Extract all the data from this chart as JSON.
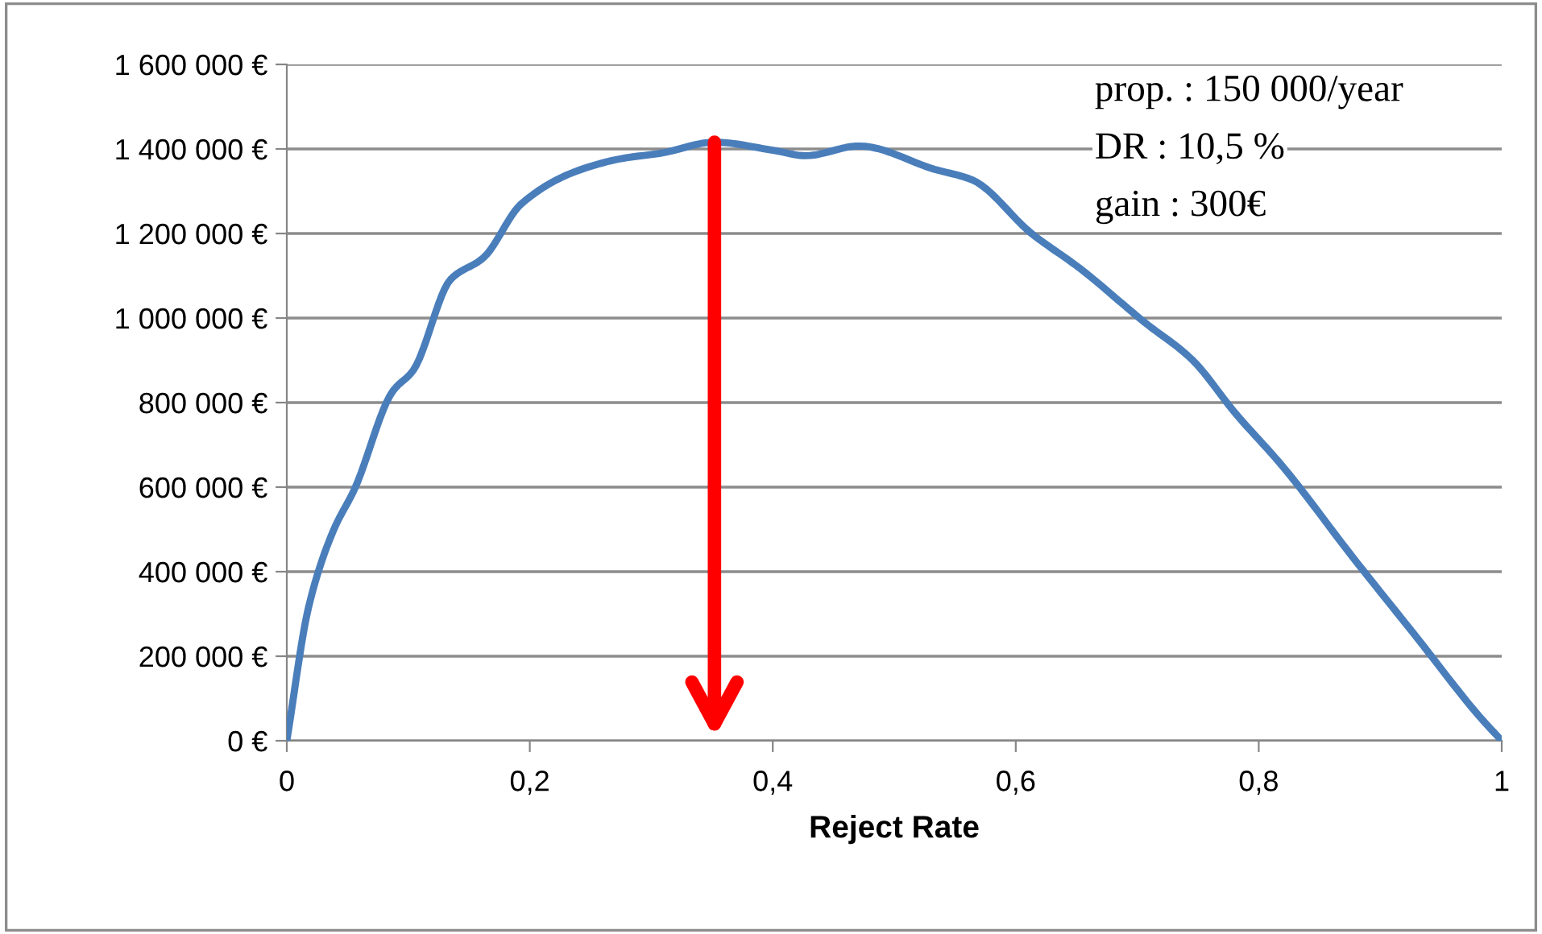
{
  "chart_data": {
    "type": "line",
    "xlabel": "Reject Rate",
    "annotations": [
      "prop. : 150 000/year",
      "DR : 10,5 %",
      "gain : 300€"
    ],
    "series": [
      {
        "color": "#4a7ebb",
        "x": [
          0,
          0.018,
          0.038,
          0.056,
          0.087,
          0.104,
          0.135,
          0.162,
          0.193,
          0.237,
          0.277,
          0.308,
          0.352,
          0.4,
          0.427,
          0.471,
          0.533,
          0.564,
          0.613,
          0.653,
          0.706,
          0.745,
          0.781,
          0.82,
          0.878,
          0.931,
          0.98,
          1.0
        ],
        "values": [
          0,
          317000,
          495000,
          597000,
          826000,
          876000,
          1092000,
          1143000,
          1270000,
          1346000,
          1378000,
          1390000,
          1416000,
          1397000,
          1384000,
          1407000,
          1352000,
          1327000,
          1200000,
          1117000,
          990000,
          902000,
          774000,
          648000,
          432000,
          241000,
          63000,
          0
        ]
      },
      {
        "type": "line",
        "color": "#ff0000",
        "x": [
          0.352,
          0.352
        ],
        "values": [
          1416000,
          40000
        ]
      }
    ],
    "xlim": [
      0,
      1
    ],
    "xticks": [
      0,
      {
        "value": 0.2,
        "label": "0,2"
      },
      {
        "value": 0.4,
        "label": "0,4"
      },
      {
        "value": 0.6,
        "label": "0,6"
      },
      {
        "value": 0.8,
        "label": "0,8"
      },
      1
    ],
    "ylim": [
      0,
      1600000
    ],
    "yticks": [
      {
        "value": 0,
        "label": "0 €"
      },
      {
        "value": 200000,
        "label": "200 000 €"
      },
      {
        "value": 400000,
        "label": "400 000 €"
      },
      {
        "value": 600000,
        "label": "600 000 €"
      },
      {
        "value": 800000,
        "label": "800 000 €"
      },
      {
        "value": 1000000,
        "label": "1 000 000 €"
      },
      {
        "value": 1200000,
        "label": "1 200 000 €"
      },
      {
        "value": 1400000,
        "label": "1 400 000 €"
      },
      {
        "value": 1600000,
        "label": "1 600 000 €"
      }
    ],
    "grid": "y",
    "legend": false,
    "marker": "none",
    "line_style": "solid"
  }
}
